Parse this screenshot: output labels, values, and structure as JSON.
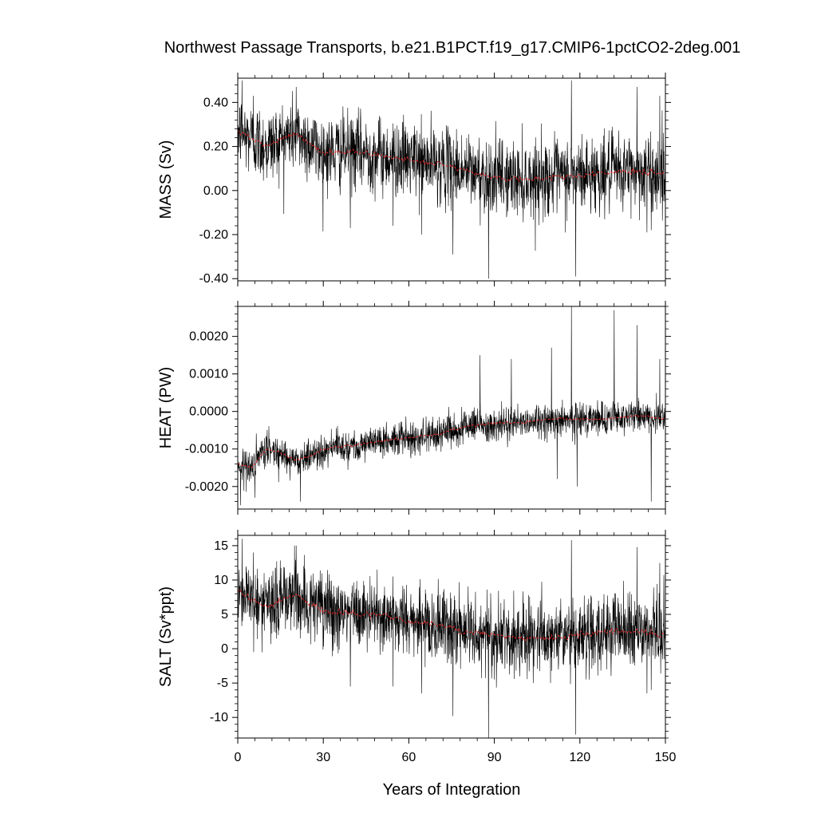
{
  "title": "Northwest Passage Transports, b.e21.B1PCT.f19_g17.CMIP6-1pctCO2-2deg.001",
  "colors": {
    "raw_line": "#000000",
    "smoothed_line": "#d62728",
    "frame": "#000000",
    "background": "#ffffff"
  },
  "chart_data": [
    {
      "type": "line",
      "panel": "mass",
      "ylabel": "MASS (Sv)",
      "xlabel": "",
      "xlim": [
        0,
        150
      ],
      "ylim": [
        -0.41,
        0.51
      ],
      "x_ticks": [
        0,
        30,
        60,
        90,
        120,
        150
      ],
      "y_ticks": [
        -0.4,
        -0.2,
        0.0,
        0.2,
        0.4
      ],
      "y_tick_labels": [
        "-0.40",
        "-0.20",
        "0.00",
        "0.20",
        "0.40"
      ],
      "x_tick_labels_shown": false,
      "x_step": 0.0833,
      "raw_noise_std": 0.085,
      "series": [
        {
          "role": "raw monthly",
          "x": [
            0,
            10,
            20,
            30,
            40,
            50,
            60,
            70,
            80,
            90,
            100,
            110,
            120,
            130,
            140,
            150
          ],
          "values": [
            0.27,
            0.2,
            0.26,
            0.17,
            0.18,
            0.16,
            0.14,
            0.12,
            0.09,
            0.06,
            0.05,
            0.06,
            0.07,
            0.08,
            0.09,
            0.07
          ]
        },
        {
          "role": "smoothed",
          "x": [
            0,
            10,
            20,
            30,
            40,
            50,
            60,
            70,
            80,
            90,
            100,
            110,
            120,
            130,
            140,
            150
          ],
          "values": [
            0.27,
            0.2,
            0.26,
            0.17,
            0.18,
            0.16,
            0.14,
            0.12,
            0.09,
            0.06,
            0.05,
            0.06,
            0.07,
            0.08,
            0.09,
            0.07
          ]
        }
      ],
      "spikes": [
        {
          "x": 1.5,
          "value": 0.5
        },
        {
          "x": 5.5,
          "value": 0.43
        },
        {
          "x": 20.5,
          "value": 0.47
        },
        {
          "x": 39.5,
          "value": -0.17
        },
        {
          "x": 54.5,
          "value": -0.16
        },
        {
          "x": 64.5,
          "value": -0.2
        },
        {
          "x": 75.5,
          "value": -0.29
        },
        {
          "x": 88.0,
          "value": -0.4
        },
        {
          "x": 117.0,
          "value": 0.5
        },
        {
          "x": 118.5,
          "value": -0.39
        },
        {
          "x": 140.0,
          "value": 0.47
        },
        {
          "x": 143.5,
          "value": -0.19
        },
        {
          "x": 145.0,
          "value": -0.18
        },
        {
          "x": 148.0,
          "value": 0.43
        }
      ]
    },
    {
      "type": "line",
      "panel": "heat",
      "ylabel": "HEAT (PW)",
      "xlabel": "",
      "xlim": [
        0,
        150
      ],
      "ylim": [
        -0.0026,
        0.0028
      ],
      "x_ticks": [
        0,
        30,
        60,
        90,
        120,
        150
      ],
      "y_ticks": [
        -0.002,
        -0.001,
        0.0,
        0.001,
        0.002
      ],
      "y_tick_labels": [
        "-0.0020",
        "-0.0010",
        "0.0000",
        "0.0010",
        "0.0020"
      ],
      "x_tick_labels_shown": false,
      "x_step": 0.0833,
      "raw_noise_std": 0.00022,
      "series": [
        {
          "role": "raw monthly",
          "x": [
            0,
            5,
            10,
            15,
            20,
            25,
            30,
            40,
            50,
            60,
            70,
            80,
            90,
            100,
            110,
            120,
            130,
            140,
            150
          ],
          "values": [
            -0.0014,
            -0.0015,
            -0.001,
            -0.0011,
            -0.0013,
            -0.0012,
            -0.001,
            -0.0009,
            -0.0008,
            -0.0007,
            -0.0006,
            -0.0004,
            -0.0003,
            -0.0003,
            -0.0002,
            -0.0002,
            -0.0002,
            -0.0001,
            -0.0002
          ]
        },
        {
          "role": "smoothed",
          "x": [
            0,
            5,
            10,
            15,
            20,
            25,
            30,
            40,
            50,
            60,
            70,
            80,
            90,
            100,
            110,
            120,
            130,
            140,
            150
          ],
          "values": [
            -0.0014,
            -0.0015,
            -0.001,
            -0.0011,
            -0.0013,
            -0.0012,
            -0.001,
            -0.0009,
            -0.0008,
            -0.0007,
            -0.0006,
            -0.0004,
            -0.0003,
            -0.0003,
            -0.0002,
            -0.0002,
            -0.0002,
            -0.0001,
            -0.0002
          ]
        }
      ],
      "spikes": [
        {
          "x": 1.0,
          "value": -0.0025
        },
        {
          "x": 6.0,
          "value": -0.0023
        },
        {
          "x": 22.0,
          "value": -0.0024
        },
        {
          "x": 85.0,
          "value": 0.0015
        },
        {
          "x": 96.0,
          "value": 0.0014
        },
        {
          "x": 110.0,
          "value": 0.0017
        },
        {
          "x": 112.0,
          "value": -0.0018
        },
        {
          "x": 117.0,
          "value": 0.0028
        },
        {
          "x": 119.0,
          "value": -0.002
        },
        {
          "x": 132.0,
          "value": 0.0027
        },
        {
          "x": 140.0,
          "value": 0.0023
        },
        {
          "x": 145.0,
          "value": -0.0024
        },
        {
          "x": 148.0,
          "value": 0.0014
        }
      ]
    },
    {
      "type": "line",
      "panel": "salt",
      "ylabel": "SALT (Sv*ppt)",
      "xlabel": "Years of Integration",
      "xlim": [
        0,
        150
      ],
      "ylim": [
        -13,
        16.5
      ],
      "x_ticks": [
        0,
        30,
        60,
        90,
        120,
        150
      ],
      "x_tick_labels": [
        "0",
        "30",
        "60",
        "90",
        "120",
        "150"
      ],
      "y_ticks": [
        -10,
        -5,
        0,
        5,
        10,
        15
      ],
      "y_tick_labels": [
        "-10",
        "-5",
        "0",
        "5",
        "10",
        "15"
      ],
      "x_tick_labels_shown": true,
      "x_step": 0.0833,
      "raw_noise_std": 2.7,
      "series": [
        {
          "role": "raw monthly",
          "x": [
            0,
            10,
            20,
            30,
            40,
            50,
            60,
            70,
            80,
            90,
            100,
            110,
            120,
            130,
            140,
            150
          ],
          "values": [
            8.5,
            6.0,
            8.0,
            5.5,
            5.0,
            5.0,
            4.0,
            3.5,
            2.5,
            2.0,
            1.5,
            1.5,
            2.0,
            2.5,
            2.5,
            2.0
          ]
        },
        {
          "role": "smoothed",
          "x": [
            0,
            10,
            20,
            30,
            40,
            50,
            60,
            70,
            80,
            90,
            100,
            110,
            120,
            130,
            140,
            150
          ],
          "values": [
            8.5,
            6.0,
            8.0,
            5.5,
            5.0,
            5.0,
            4.0,
            3.5,
            2.5,
            2.0,
            1.5,
            1.5,
            2.0,
            2.5,
            2.5,
            2.0
          ]
        }
      ],
      "spikes": [
        {
          "x": 1.5,
          "value": 16.0
        },
        {
          "x": 5.5,
          "value": 14.0
        },
        {
          "x": 20.5,
          "value": 15.0
        },
        {
          "x": 39.5,
          "value": -5.5
        },
        {
          "x": 54.5,
          "value": -5.5
        },
        {
          "x": 64.5,
          "value": -6.5
        },
        {
          "x": 75.5,
          "value": -9.8
        },
        {
          "x": 88.0,
          "value": -13.0
        },
        {
          "x": 117.0,
          "value": 15.8
        },
        {
          "x": 118.5,
          "value": -12.5
        },
        {
          "x": 140.0,
          "value": 14.8
        },
        {
          "x": 143.5,
          "value": -6.5
        },
        {
          "x": 145.0,
          "value": -6.0
        },
        {
          "x": 148.0,
          "value": 12.5
        }
      ]
    }
  ]
}
